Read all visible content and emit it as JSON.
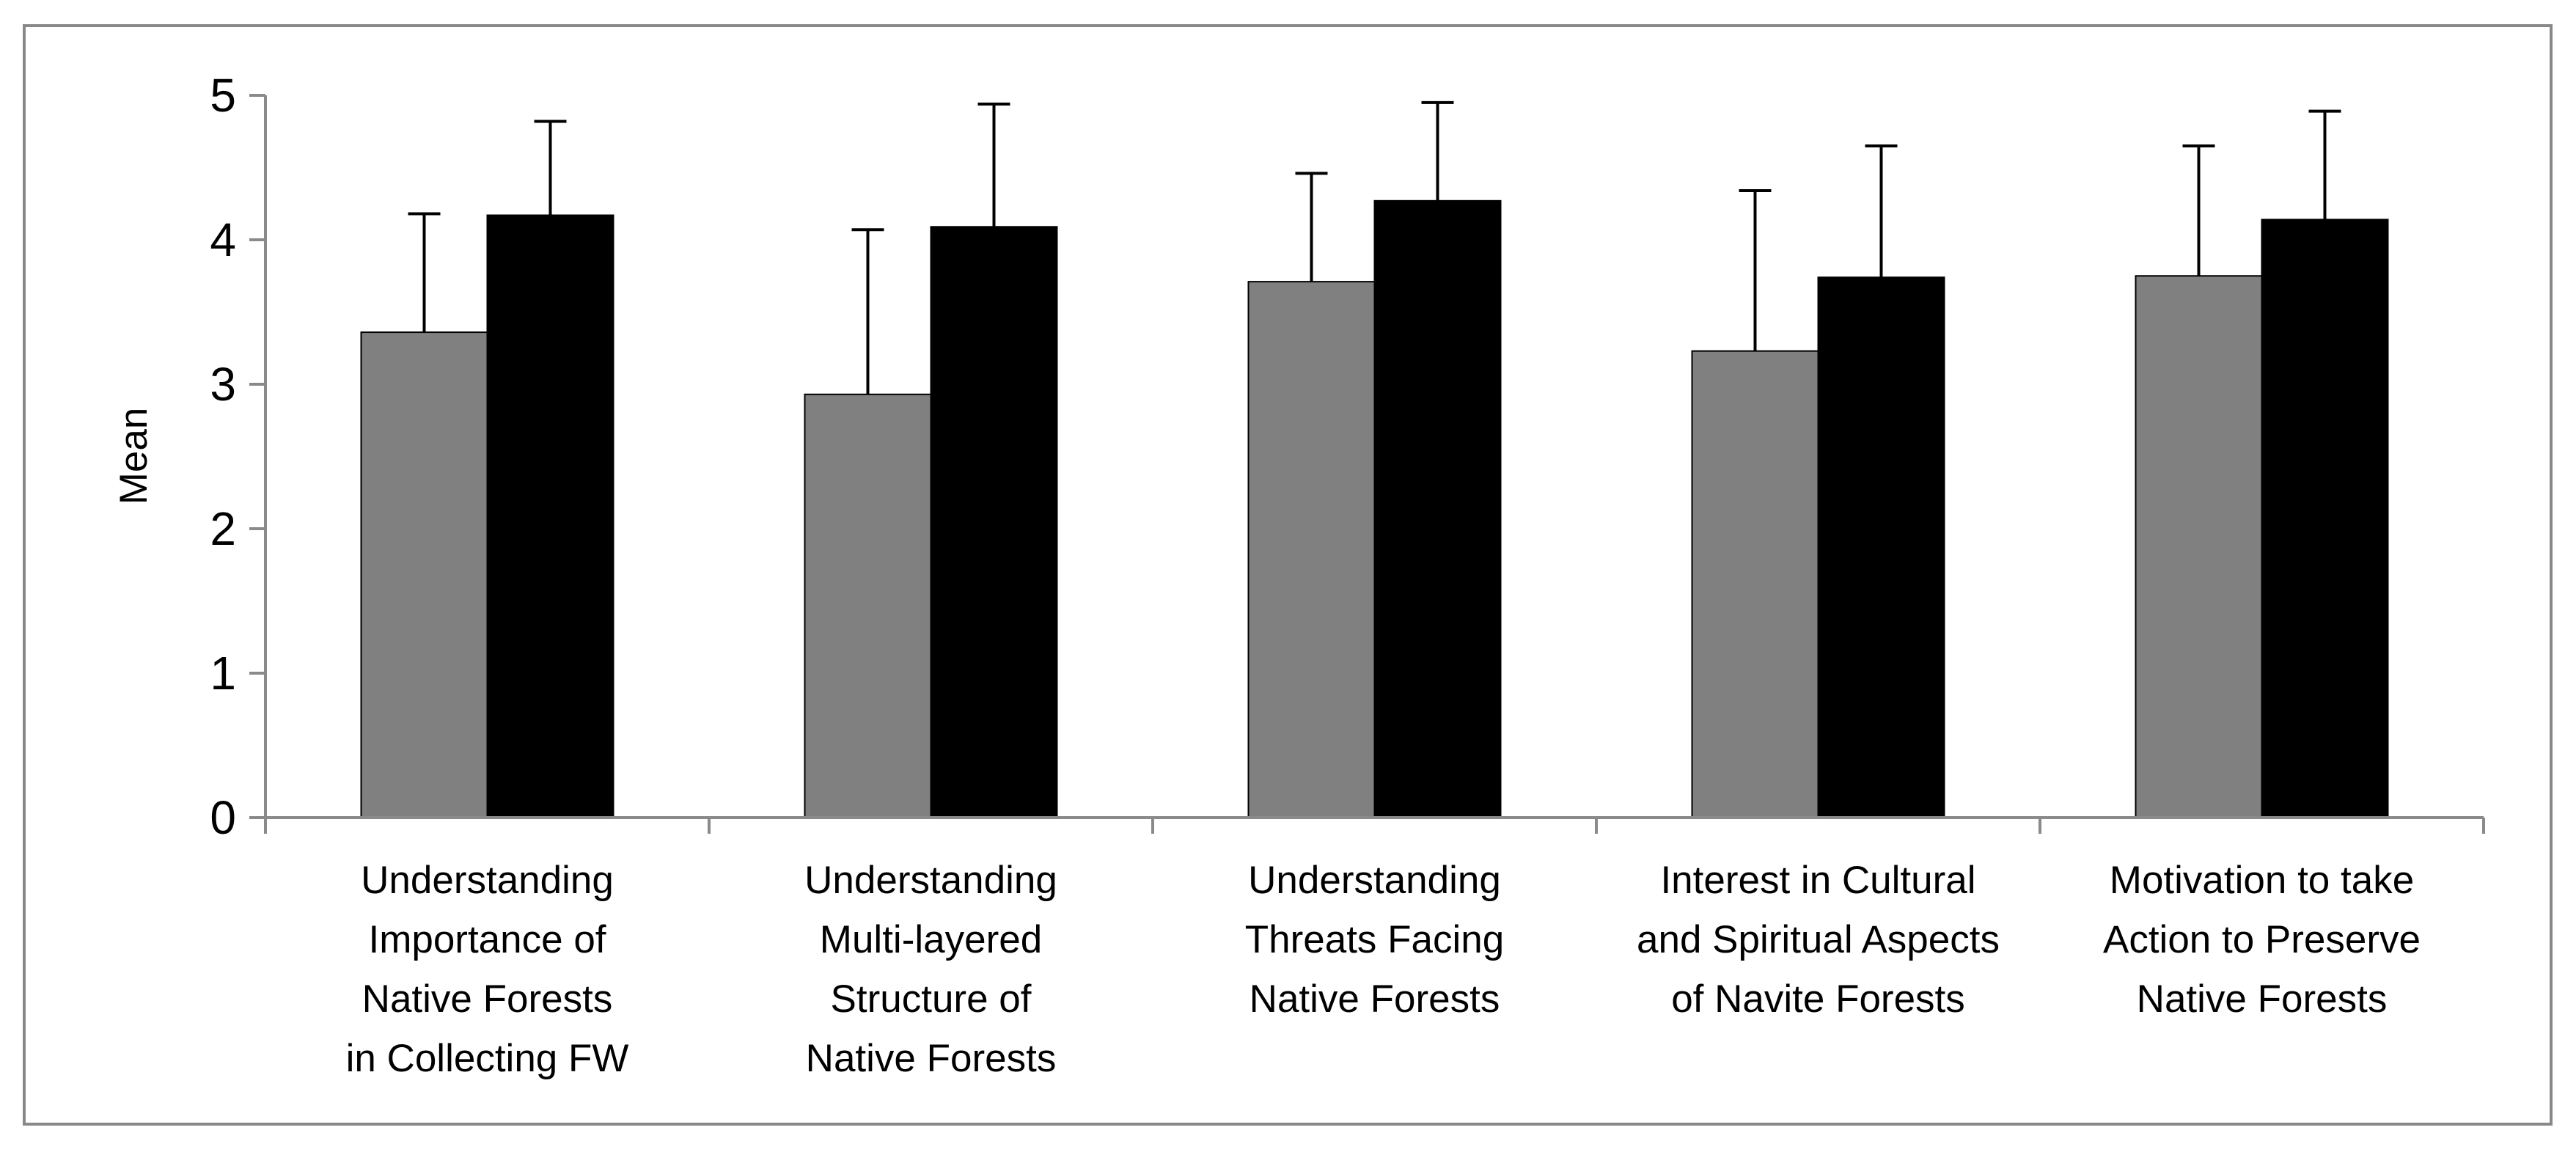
{
  "chart_data": {
    "type": "bar",
    "title": "",
    "xlabel": "",
    "ylabel": "Mean",
    "ylim": [
      0,
      5
    ],
    "yticks": [
      "0",
      "1",
      "2",
      "3",
      "4",
      "5"
    ],
    "grid": false,
    "legend": "none",
    "categories": [
      "Understanding Importance of Native Forests in Collecting FW",
      "Understanding Multi-layered Structure of Native Forests",
      "Understanding Threats Facing Native Forests",
      "Interest in Cultural and Spiritual Aspects of Navite Forests",
      "Motivation to take Action to Preserve Native Forests"
    ],
    "category_lines": [
      [
        "Understanding",
        "Importance of",
        "Native Forests",
        "in Collecting FW"
      ],
      [
        "Understanding",
        "Multi-layered",
        "Structure of",
        "Native Forests"
      ],
      [
        "Understanding",
        "Threats Facing",
        "Native Forests"
      ],
      [
        "Interest in Cultural",
        "and Spiritual Aspects",
        "of Navite Forests"
      ],
      [
        "Motivation to take",
        "Action to Preserve",
        "Native Forests"
      ]
    ],
    "series": [
      {
        "color": "#808080",
        "values": [
          3.36,
          2.93,
          3.71,
          3.23,
          3.75
        ],
        "error_upper": [
          4.18,
          4.07,
          4.46,
          4.34,
          4.65
        ]
      },
      {
        "color": "#000000",
        "values": [
          4.17,
          4.09,
          4.27,
          3.74,
          4.14
        ],
        "error_upper": [
          4.82,
          4.94,
          4.95,
          4.65,
          4.89
        ]
      }
    ]
  }
}
